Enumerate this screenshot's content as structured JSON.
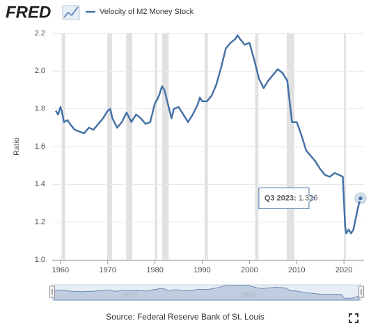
{
  "logo": "FRED",
  "chart_data": {
    "type": "line",
    "y_label": "Ratio",
    "source": "Source: Federal Reserve Bank of St. Louis",
    "xlim": [
      1958.25,
      2024.25
    ],
    "ylim": [
      1.0,
      2.2
    ],
    "xticks": [
      1960,
      1970,
      1980,
      1990,
      2000,
      2010,
      2020
    ],
    "yticks": [
      {
        "value": 1.0,
        "label": "1.0"
      },
      1.2,
      1.4,
      1.6,
      1.8,
      {
        "value": 2.0,
        "label": "2.0"
      },
      2.2
    ],
    "grid": true,
    "recession_color": "#e1e1e1",
    "recessions": [
      [
        1960.25,
        1961.0
      ],
      [
        1969.9,
        1970.9
      ],
      [
        1973.9,
        1975.2
      ],
      [
        1980.0,
        1980.5
      ],
      [
        1981.5,
        1982.9
      ],
      [
        1990.5,
        1991.2
      ],
      [
        2001.2,
        2001.9
      ],
      [
        2007.9,
        2009.5
      ],
      [
        2020.0,
        2020.4
      ]
    ],
    "navigator_ticks": [
      1975,
      2000
    ],
    "tooltip": {
      "label": "Q3 2023:",
      "value": 1.326
    },
    "series": [
      {
        "name": "Velocity of M2 Money Stock",
        "color": "#4572a7",
        "x": [
          1959.0,
          1959.5,
          1960.0,
          1960.25,
          1960.75,
          1961.5,
          1962.0,
          1963.0,
          1964.0,
          1965.0,
          1966.0,
          1967.0,
          1968.0,
          1969.0,
          1970.0,
          1970.5,
          1971.0,
          1972.0,
          1973.0,
          1974.0,
          1975.0,
          1976.0,
          1977.0,
          1978.0,
          1979.0,
          1980.0,
          1980.5,
          1981.0,
          1981.5,
          1982.0,
          1982.5,
          1983.0,
          1983.5,
          1984.0,
          1985.0,
          1986.0,
          1987.0,
          1988.0,
          1989.0,
          1989.5,
          1990.0,
          1991.0,
          1992.0,
          1993.0,
          1994.0,
          1995.0,
          1996.0,
          1997.0,
          1997.5,
          1998.0,
          1999.0,
          2000.0,
          2001.0,
          2002.0,
          2003.0,
          2004.0,
          2005.0,
          2006.0,
          2007.0,
          2008.0,
          2009.0,
          2010.0,
          2011.0,
          2012.0,
          2013.0,
          2014.0,
          2015.0,
          2016.0,
          2017.0,
          2018.0,
          2019.0,
          2019.75,
          2020.25,
          2020.5,
          2021.0,
          2021.5,
          2022.0,
          2022.5,
          2023.0,
          2023.5
        ],
        "values": [
          1.79,
          1.77,
          1.81,
          1.79,
          1.73,
          1.74,
          1.72,
          1.69,
          1.68,
          1.67,
          1.7,
          1.69,
          1.72,
          1.75,
          1.79,
          1.8,
          1.75,
          1.7,
          1.73,
          1.78,
          1.73,
          1.77,
          1.75,
          1.72,
          1.73,
          1.83,
          1.85,
          1.88,
          1.92,
          1.9,
          1.85,
          1.8,
          1.75,
          1.8,
          1.81,
          1.77,
          1.73,
          1.77,
          1.82,
          1.86,
          1.84,
          1.84,
          1.87,
          1.93,
          2.02,
          2.12,
          2.15,
          2.17,
          2.19,
          2.17,
          2.14,
          2.15,
          2.06,
          1.96,
          1.91,
          1.95,
          1.98,
          2.01,
          1.99,
          1.95,
          1.73,
          1.73,
          1.66,
          1.58,
          1.55,
          1.52,
          1.48,
          1.45,
          1.44,
          1.46,
          1.45,
          1.44,
          1.18,
          1.14,
          1.16,
          1.14,
          1.16,
          1.22,
          1.28,
          1.326
        ]
      }
    ]
  }
}
